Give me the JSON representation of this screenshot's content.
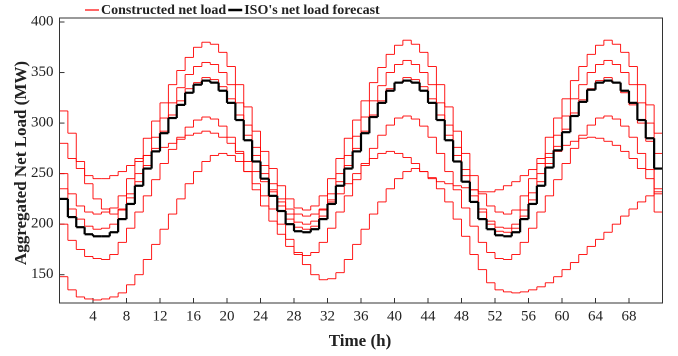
{
  "chart_data": {
    "type": "step-line",
    "xlabel": "Time (h)",
    "ylabel": "Aggregated Net Load (MW)",
    "xlim": [
      0,
      72
    ],
    "xticks": [
      4,
      8,
      12,
      16,
      20,
      24,
      28,
      32,
      36,
      40,
      44,
      48,
      52,
      56,
      60,
      64,
      68
    ],
    "ylim": [
      122,
      400
    ],
    "yticks": [
      150,
      200,
      250,
      300,
      350,
      400
    ],
    "x": [
      0,
      1,
      2,
      3,
      4,
      5,
      6,
      7,
      8,
      9,
      10,
      11,
      12,
      13,
      14,
      15,
      16,
      17,
      18,
      19,
      20,
      21,
      22,
      23,
      24,
      25,
      26,
      27,
      28,
      29,
      30,
      31,
      32,
      33,
      34,
      35,
      36,
      37,
      38,
      39,
      40,
      41,
      42,
      43,
      44,
      45,
      46,
      47,
      48,
      49,
      50,
      51,
      52,
      53,
      54,
      55,
      56,
      57,
      58,
      59,
      60,
      61,
      62,
      63,
      64,
      65,
      66,
      67,
      68,
      69,
      70,
      71
    ],
    "series": [
      {
        "name": "Constructed net load",
        "color": "#ff0000",
        "values": [
          [
            250,
            230,
            218,
            212,
            210,
            212,
            216,
            228,
            245,
            265,
            285,
            302,
            320,
            338,
            352,
            365,
            375,
            380,
            378,
            370,
            356,
            338,
            316,
            292,
            272,
            255,
            238,
            225,
            216,
            214,
            218,
            228,
            245,
            265,
            285,
            303,
            322,
            340,
            355,
            368,
            377,
            382,
            378,
            370,
            356,
            338,
            316,
            292,
            270,
            248,
            230,
            218,
            212,
            210,
            214,
            228,
            245,
            265,
            286,
            305,
            324,
            342,
            356,
            368,
            377,
            382,
            378,
            370,
            356,
            338,
            318,
            290
          ],
          [
            200,
            184,
            175,
            168,
            166,
            165,
            170,
            182,
            196,
            212,
            228,
            244,
            260,
            274,
            286,
            296,
            303,
            306,
            304,
            297,
            286,
            270,
            252,
            234,
            218,
            203,
            190,
            178,
            170,
            169,
            172,
            182,
            196,
            212,
            228,
            244,
            260,
            275,
            288,
            298,
            305,
            307,
            304,
            297,
            286,
            270,
            252,
            234,
            216,
            198,
            182,
            172,
            166,
            165,
            170,
            182,
            196,
            212,
            228,
            244,
            260,
            275,
            288,
            298,
            305,
            307,
            304,
            297,
            286,
            270,
            254,
            230
          ],
          [
            148,
            135,
            128,
            126,
            125,
            126,
            128,
            132,
            140,
            150,
            165,
            180,
            195,
            210,
            225,
            240,
            252,
            262,
            268,
            270,
            268,
            262,
            252,
            240,
            228,
            215,
            200,
            185,
            172,
            160,
            150,
            145,
            146,
            152,
            165,
            180,
            195,
            210,
            222,
            235,
            245,
            252,
            255,
            252,
            245,
            235,
            222,
            205,
            188,
            170,
            155,
            142,
            135,
            133,
            132,
            133,
            135,
            138,
            142,
            148,
            155,
            162,
            170,
            178,
            185,
            192,
            200,
            208,
            215,
            222,
            228,
            232
          ],
          [
            280,
            265,
            255,
            248,
            245,
            245,
            248,
            252,
            258,
            262,
            268,
            272,
            276,
            280,
            284,
            288,
            290,
            292,
            290,
            286,
            280,
            272,
            262,
            252,
            242,
            232,
            222,
            215,
            210,
            208,
            210,
            215,
            222,
            230,
            240,
            250,
            258,
            265,
            270,
            272,
            270,
            266,
            260,
            252,
            246,
            242,
            240,
            238,
            236,
            234,
            232,
            232,
            234,
            238,
            242,
            248,
            254,
            260,
            266,
            272,
            278,
            282,
            285,
            286,
            285,
            282,
            278,
            272,
            265,
            255,
            245,
            235
          ],
          [
            235,
            215,
            205,
            198,
            195,
            196,
            200,
            214,
            230,
            250,
            268,
            286,
            305,
            320,
            335,
            348,
            356,
            360,
            358,
            350,
            338,
            320,
            298,
            276,
            258,
            240,
            225,
            210,
            202,
            200,
            203,
            214,
            230,
            250,
            268,
            287,
            306,
            322,
            337,
            350,
            358,
            362,
            358,
            350,
            338,
            320,
            298,
            276,
            254,
            234,
            215,
            203,
            197,
            196,
            200,
            214,
            231,
            250,
            270,
            288,
            307,
            324,
            338,
            350,
            358,
            362,
            358,
            350,
            338,
            320,
            300,
            270
          ],
          [
            312,
            290,
            262,
            240,
            225,
            215,
            210,
            215,
            226,
            242,
            258,
            275,
            292,
            308,
            322,
            334,
            340,
            345,
            343,
            336,
            324,
            308,
            288,
            268,
            250,
            234,
            218,
            205,
            197,
            195,
            198,
            208,
            224,
            242,
            258,
            275,
            292,
            308,
            322,
            334,
            340,
            345,
            343,
            336,
            324,
            308,
            288,
            268,
            248,
            228,
            212,
            200,
            193,
            192,
            196,
            208,
            224,
            242,
            260,
            277,
            294,
            310,
            323,
            334,
            342,
            345,
            340,
            330,
            318,
            300,
            282,
            212
          ]
        ]
      },
      {
        "name": "ISO's net load forecast",
        "color": "#000000",
        "values": [
          225,
          207,
          197,
          190,
          188,
          188,
          192,
          205,
          220,
          238,
          255,
          272,
          290,
          305,
          318,
          330,
          338,
          342,
          340,
          332,
          320,
          303,
          283,
          262,
          245,
          228,
          213,
          200,
          193,
          192,
          195,
          205,
          220,
          238,
          255,
          272,
          290,
          306,
          320,
          332,
          340,
          342,
          340,
          332,
          320,
          303,
          283,
          262,
          242,
          222,
          205,
          195,
          189,
          188,
          192,
          205,
          220,
          238,
          256,
          273,
          291,
          307,
          321,
          333,
          340,
          342,
          340,
          332,
          320,
          303,
          285,
          255
        ]
      }
    ]
  }
}
